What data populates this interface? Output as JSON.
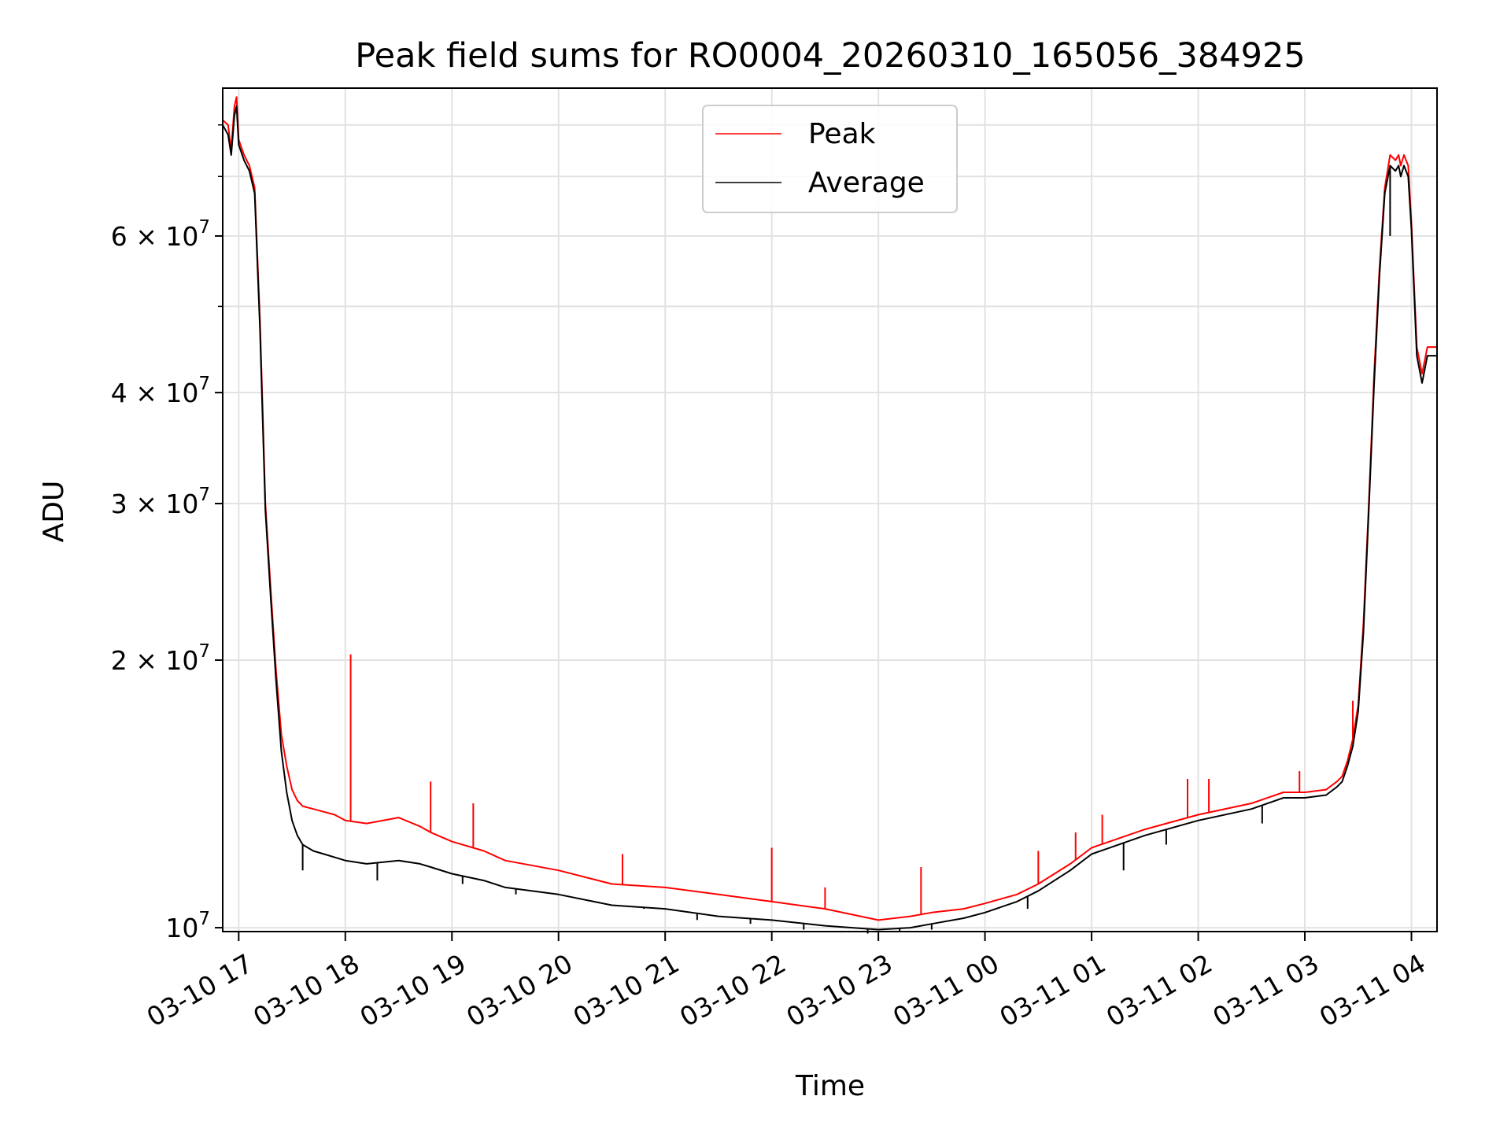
{
  "chart_data": {
    "type": "line",
    "title": "Peak field sums for RO0004_20260310_165056_384925",
    "xlabel": "Time",
    "ylabel": "ADU",
    "yscale": "log",
    "ylim": [
      9900000,
      88000000
    ],
    "xlim_hours": [
      -0.15,
      11.24
    ],
    "grid": true,
    "legend_location": "upper center",
    "x_ticks": [
      {
        "pos": 0,
        "label": "03-10 17"
      },
      {
        "pos": 1,
        "label": "03-10 18"
      },
      {
        "pos": 2,
        "label": "03-10 19"
      },
      {
        "pos": 3,
        "label": "03-10 20"
      },
      {
        "pos": 4,
        "label": "03-10 21"
      },
      {
        "pos": 5,
        "label": "03-10 22"
      },
      {
        "pos": 6,
        "label": "03-10 23"
      },
      {
        "pos": 7,
        "label": "03-11 00"
      },
      {
        "pos": 8,
        "label": "03-11 01"
      },
      {
        "pos": 9,
        "label": "03-11 02"
      },
      {
        "pos": 10,
        "label": "03-11 03"
      },
      {
        "pos": 11,
        "label": "03-11 04"
      }
    ],
    "y_ticks": [
      {
        "value": 10000000,
        "base": "10",
        "exp": "7"
      },
      {
        "value": 20000000,
        "base": "2 × 10",
        "exp": "7"
      },
      {
        "value": 30000000,
        "base": "3 × 10",
        "exp": "7"
      },
      {
        "value": 40000000,
        "base": "4 × 10",
        "exp": "7"
      },
      {
        "value": 60000000,
        "base": "6 × 10",
        "exp": "7"
      }
    ],
    "y_minor_ticks": [
      50000000,
      70000000,
      80000000
    ],
    "series": [
      {
        "name": "Peak",
        "color": "#ff0000",
        "x_hours": [
          -0.15,
          -0.1,
          -0.07,
          -0.04,
          -0.02,
          0.0,
          0.05,
          0.1,
          0.15,
          0.2,
          0.22,
          0.25,
          0.3,
          0.35,
          0.4,
          0.45,
          0.5,
          0.55,
          0.6,
          0.7,
          0.8,
          0.9,
          1.0,
          1.2,
          1.5,
          1.7,
          1.8,
          2.0,
          2.3,
          2.5,
          3.0,
          3.5,
          4.0,
          4.5,
          5.0,
          5.5,
          6.0,
          6.3,
          6.5,
          6.8,
          7.0,
          7.3,
          7.5,
          7.8,
          8.0,
          8.5,
          9.0,
          9.5,
          9.8,
          10.0,
          10.2,
          10.3,
          10.35,
          10.4,
          10.45,
          10.5,
          10.55,
          10.6,
          10.65,
          10.7,
          10.75,
          10.8,
          10.85,
          10.88,
          10.9,
          10.93,
          10.97,
          11.0,
          11.05,
          11.1,
          11.15,
          11.24
        ],
        "values": [
          81000000,
          80000000,
          75000000,
          84000000,
          86000000,
          77000000,
          74000000,
          72000000,
          68000000,
          48000000,
          40000000,
          30000000,
          24000000,
          19500000,
          16500000,
          15200000,
          14300000,
          13900000,
          13700000,
          13600000,
          13500000,
          13400000,
          13200000,
          13100000,
          13300000,
          13000000,
          12800000,
          12500000,
          12200000,
          11900000,
          11600000,
          11200000,
          11100000,
          10900000,
          10700000,
          10500000,
          10200000,
          10300000,
          10400000,
          10500000,
          10650000,
          10900000,
          11200000,
          11800000,
          12300000,
          12900000,
          13400000,
          13800000,
          14200000,
          14200000,
          14300000,
          14600000,
          14800000,
          15400000,
          16300000,
          17800000,
          22000000,
          30000000,
          42000000,
          55000000,
          68000000,
          74000000,
          73000000,
          74000000,
          72000000,
          74000000,
          72000000,
          62000000,
          45000000,
          42000000,
          45000000,
          45000000
        ],
        "spikes": [
          [
            1.05,
            20300000
          ],
          [
            1.8,
            14600000
          ],
          [
            2.2,
            13800000
          ],
          [
            3.6,
            12100000
          ],
          [
            5.0,
            12300000
          ],
          [
            5.5,
            11100000
          ],
          [
            6.4,
            11700000
          ],
          [
            7.5,
            12200000
          ],
          [
            7.85,
            12800000
          ],
          [
            8.1,
            13400000
          ],
          [
            8.9,
            14700000
          ],
          [
            9.1,
            14700000
          ],
          [
            9.95,
            15000000
          ],
          [
            10.45,
            18000000
          ]
        ]
      },
      {
        "name": "Average",
        "color": "#000000",
        "x_hours": [
          -0.15,
          -0.1,
          -0.07,
          -0.04,
          -0.02,
          0.0,
          0.05,
          0.1,
          0.15,
          0.2,
          0.22,
          0.25,
          0.3,
          0.35,
          0.4,
          0.45,
          0.5,
          0.55,
          0.6,
          0.7,
          0.8,
          0.9,
          1.0,
          1.2,
          1.5,
          1.7,
          1.8,
          2.0,
          2.3,
          2.5,
          3.0,
          3.5,
          4.0,
          4.5,
          5.0,
          5.5,
          6.0,
          6.3,
          6.5,
          6.8,
          7.0,
          7.3,
          7.5,
          7.8,
          8.0,
          8.5,
          9.0,
          9.5,
          9.8,
          10.0,
          10.2,
          10.3,
          10.35,
          10.4,
          10.45,
          10.5,
          10.55,
          10.6,
          10.65,
          10.7,
          10.75,
          10.8,
          10.85,
          10.88,
          10.9,
          10.93,
          10.97,
          11.0,
          11.05,
          11.1,
          11.15,
          11.24
        ],
        "values": [
          80000000,
          78000000,
          74000000,
          82000000,
          84000000,
          76000000,
          73000000,
          71000000,
          67000000,
          47000000,
          39000000,
          29500000,
          23500000,
          19000000,
          15800000,
          14200000,
          13200000,
          12700000,
          12400000,
          12200000,
          12100000,
          12000000,
          11900000,
          11800000,
          11900000,
          11800000,
          11700000,
          11500000,
          11300000,
          11100000,
          10900000,
          10600000,
          10500000,
          10300000,
          10200000,
          10050000,
          9950000,
          10000000,
          10100000,
          10250000,
          10400000,
          10700000,
          11000000,
          11600000,
          12100000,
          12700000,
          13200000,
          13600000,
          14000000,
          14000000,
          14100000,
          14400000,
          14600000,
          15200000,
          16000000,
          17500000,
          21500000,
          29500000,
          41000000,
          54000000,
          67000000,
          72000000,
          71000000,
          72000000,
          70000000,
          72000000,
          70000000,
          61000000,
          44000000,
          41000000,
          44000000,
          44000000
        ],
        "dips": [
          [
            0.6,
            11600000
          ],
          [
            1.3,
            11300000
          ],
          [
            2.1,
            11200000
          ],
          [
            2.6,
            10900000
          ],
          [
            3.2,
            10800000
          ],
          [
            3.8,
            10500000
          ],
          [
            4.3,
            10200000
          ],
          [
            4.8,
            10100000
          ],
          [
            5.3,
            9950000
          ],
          [
            5.9,
            9850000
          ],
          [
            6.2,
            9900000
          ],
          [
            6.5,
            9950000
          ],
          [
            7.4,
            10500000
          ],
          [
            8.3,
            11600000
          ],
          [
            8.7,
            12400000
          ],
          [
            9.6,
            13100000
          ],
          [
            10.8,
            60000000
          ]
        ]
      }
    ]
  }
}
